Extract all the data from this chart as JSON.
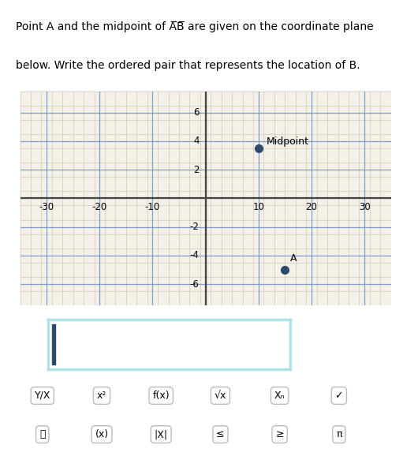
{
  "midpoint": [
    10,
    3.5
  ],
  "point_a": [
    15,
    -5
  ],
  "midpoint_label": "Midpoint",
  "point_a_label": "A",
  "xlim": [
    -35,
    35
  ],
  "ylim": [
    -7.5,
    7.5
  ],
  "xticks": [
    -30,
    -20,
    -10,
    10,
    20,
    30
  ],
  "yticks": [
    -6,
    -4,
    -2,
    2,
    4,
    6
  ],
  "minor_x_step": 2,
  "minor_y_step": 1,
  "point_color": "#2d4a6b",
  "grid_color_major": "#7b9fc8",
  "grid_color_minor": "#d0c8b8",
  "bg_color": "#f5f0e8",
  "input_box_color": "#b0e0e8",
  "cursor_color": "#2d4a6b"
}
